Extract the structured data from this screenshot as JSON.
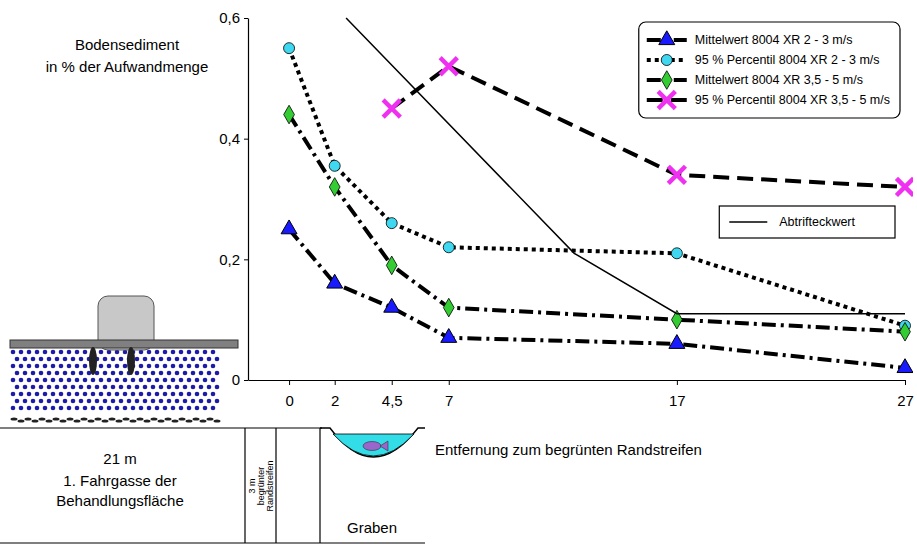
{
  "chart_data": {
    "type": "line",
    "y_label": [
      "Bodensediment",
      "in % der Aufwandmenge"
    ],
    "x_label": "Entfernung zum begrünten Randstreifen",
    "annotations": {
      "field_width": "21 m",
      "field_label": [
        "1. Fahrgasse der",
        "Behandlungsfläche"
      ],
      "strip_label": [
        "3 m",
        "begrünter",
        "Randstreifen"
      ],
      "ditch_label": "Graben"
    },
    "xlim": [
      -1.8,
      27
    ],
    "xticks": [
      0,
      2,
      {
        "value": 4.5,
        "label": "4,5"
      },
      7,
      17,
      27
    ],
    "ylim": [
      0,
      0.6
    ],
    "yticks": [
      0,
      {
        "value": 0.2,
        "label": "0,2"
      },
      {
        "value": 0.4,
        "label": "0,4"
      },
      {
        "value": 0.6,
        "label": "0,6"
      }
    ],
    "grid": false,
    "legend": "upper right",
    "series": [
      {
        "name": "Mittelwert 8004 XR 2 - 3 m/s",
        "color": "#1a1aff",
        "marker": "triangle",
        "line_style": "dashdot",
        "x": [
          0,
          2,
          4.5,
          7,
          17,
          27
        ],
        "values": [
          0.25,
          0.16,
          0.12,
          0.07,
          0.06,
          0.02
        ]
      },
      {
        "name": "95 % Percentil 8004 XR 2 - 3 m/s",
        "color": "#40d8f0",
        "marker": "circle",
        "line_style": "dotted",
        "x": [
          0,
          2,
          4.5,
          7,
          17,
          27
        ],
        "values": [
          0.55,
          0.355,
          0.26,
          0.22,
          0.21,
          0.09
        ]
      },
      {
        "name": "Mittelwert 8004 XR 3,5 - 5 m/s",
        "color": "#33cc33",
        "marker": "diamond",
        "line_style": "dashdot",
        "x": [
          0,
          2,
          4.5,
          7,
          17,
          27
        ],
        "values": [
          0.44,
          0.32,
          0.19,
          0.12,
          0.1,
          0.08
        ]
      },
      {
        "name": "95 % Percentil 8004 XR 3,5 - 5 m/s",
        "color": "#f030f0",
        "marker": "x",
        "line_style": "dashed",
        "x": [
          4.5,
          7,
          17,
          27
        ],
        "values": [
          0.45,
          0.52,
          0.34,
          0.32
        ]
      },
      {
        "name": "Abtrifteckwert",
        "marker": "none",
        "line_style": "solid",
        "x": [
          2.5,
          12.5,
          17,
          27
        ],
        "values": [
          0.6,
          0.21,
          0.11,
          0.11
        ]
      }
    ]
  }
}
